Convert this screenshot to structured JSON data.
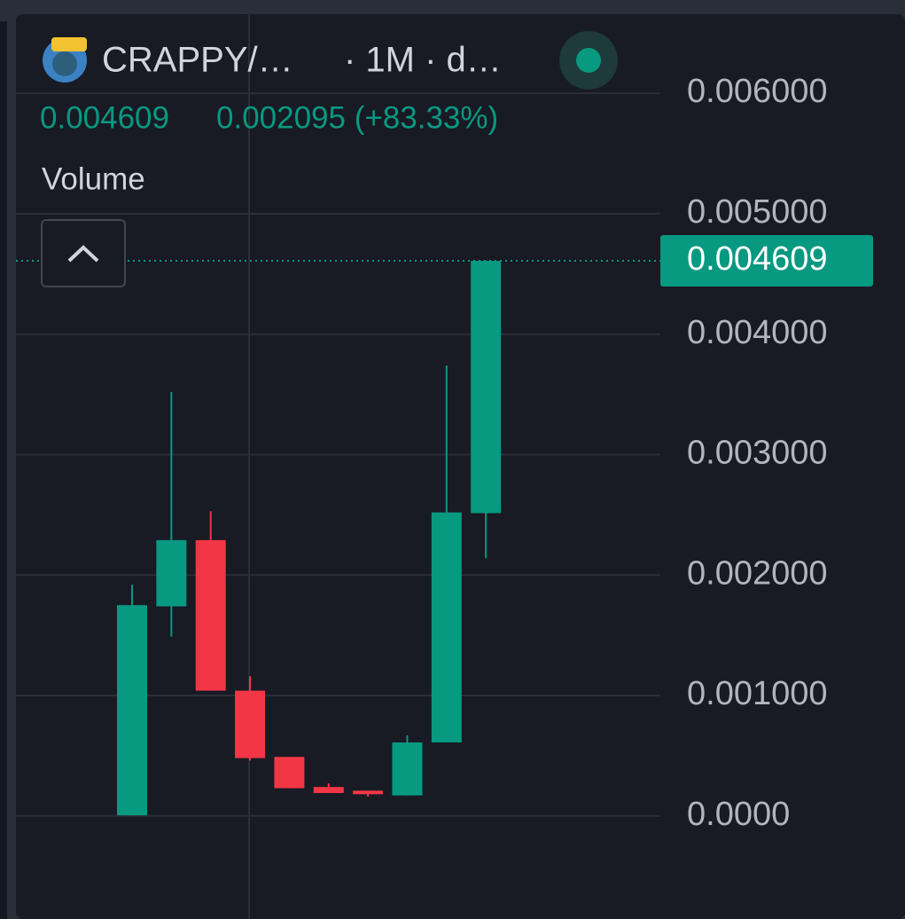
{
  "chart_data": {
    "type": "candlestick",
    "title": "CRAPPY/…",
    "interval": "· 1M · d…",
    "change": "0.002095 (+83.33%)",
    "legend_label": "Volume",
    "open": [
      5e-06,
      0.00174,
      0.00229,
      0.00104,
      0.00049,
      0.00024,
      0.00021,
      0.00017,
      0.00061,
      0.002514
    ],
    "high": [
      0.00192,
      0.00352,
      0.00253,
      0.00116,
      0.00049,
      0.00027,
      0.00021,
      0.00067,
      0.00374,
      0.004609
    ],
    "low": [
      5e-06,
      0.00149,
      0.00104,
      0.00046,
      0.00023,
      0.00019,
      0.00016,
      0.00017,
      0.00061,
      0.00214
    ],
    "close": [
      0.00175,
      0.00229,
      0.00104,
      0.00048,
      0.00023,
      0.00019,
      0.00018,
      0.00061,
      0.00252,
      0.004609
    ],
    "up_color": "#089981",
    "down_color": "#f23645",
    "ylim": [
      -0.000856,
      0.006657
    ],
    "yticks": [
      {
        "value": 0,
        "label": "0.0000"
      },
      {
        "value": 0.001,
        "label": "0.001000"
      },
      {
        "value": 0.002,
        "label": "0.002000"
      },
      {
        "value": 0.003,
        "label": "0.003000"
      },
      {
        "value": 0.004,
        "label": "0.004000"
      },
      {
        "value": 0.005,
        "label": "0.005000"
      },
      {
        "value": 0.006,
        "label": "0.006000"
      }
    ],
    "grid": true
  }
}
